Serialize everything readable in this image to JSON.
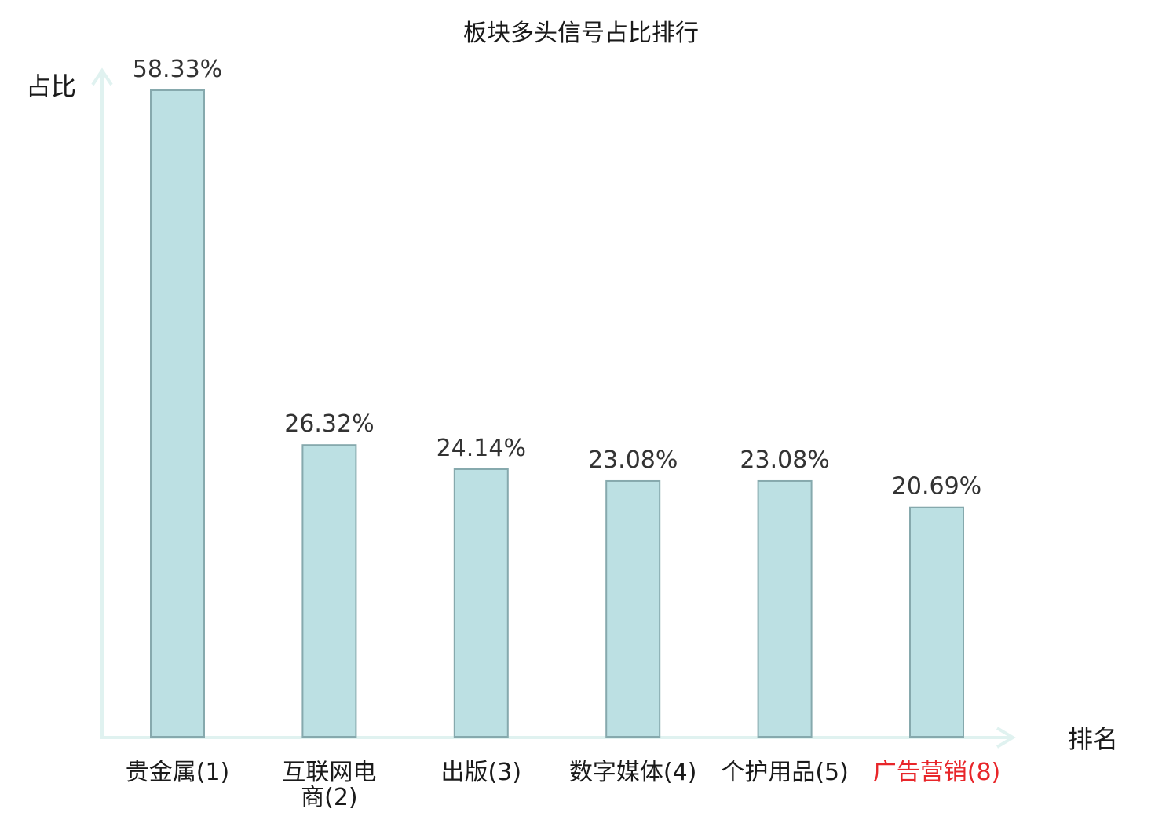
{
  "chart_data": {
    "type": "bar",
    "title": "板块多头信号占比排行",
    "xlabel": "排名",
    "ylabel": "占比",
    "categories": [
      "贵金属(1)",
      "互联网电商(2)",
      "出版(3)",
      "数字媒体(4)",
      "个护用品(5)",
      "广告营销(8)"
    ],
    "values": [
      58.33,
      26.32,
      24.14,
      23.08,
      23.08,
      20.69
    ],
    "value_labels": [
      "58.33%",
      "26.32%",
      "24.14%",
      "23.08%",
      "23.08%",
      "20.69%"
    ],
    "highlight_category": "广告营销(8)",
    "ylim": [
      0,
      58.33
    ],
    "grid": false,
    "colors": {
      "bar_fill": "#bce0e3",
      "bar_stroke": "#86a9ad",
      "axis": "#e0f2f0",
      "highlight_text": "#e8262a"
    }
  }
}
